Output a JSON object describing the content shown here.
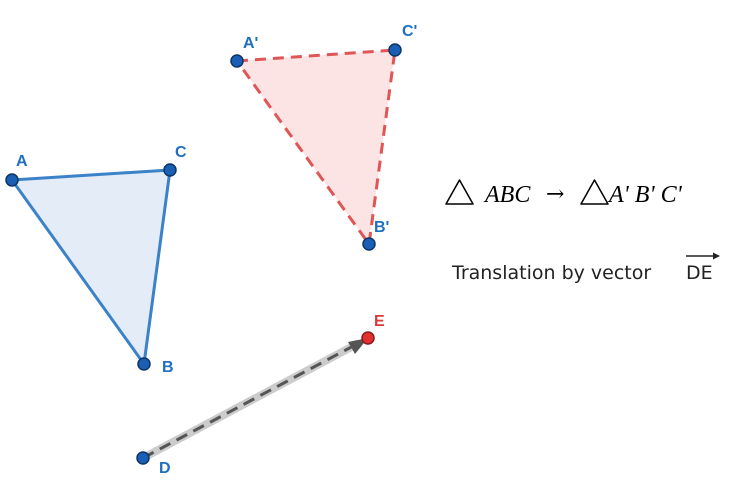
{
  "points": {
    "A": {
      "label": "A"
    },
    "B": {
      "label": "B"
    },
    "C": {
      "label": "C"
    },
    "A1": {
      "label": "A'"
    },
    "B1": {
      "label": "B'"
    },
    "C1": {
      "label": "C'"
    },
    "D": {
      "label": "D"
    },
    "E": {
      "label": "E"
    }
  },
  "formula": {
    "left": "ABC",
    "arrow": "→",
    "right": "A' B' C'"
  },
  "caption": {
    "text": "Translation by vector",
    "vector": "DE"
  },
  "colors": {
    "original_stroke": "#3b82c8",
    "original_fill": "#e3ecf7",
    "image_stroke": "#e05555",
    "image_fill": "#fce4e4",
    "point_fill": "#1a5fb4",
    "point_stroke": "#0b3566",
    "e_point_fill": "#e03030",
    "vector_stroke": "#555555"
  }
}
